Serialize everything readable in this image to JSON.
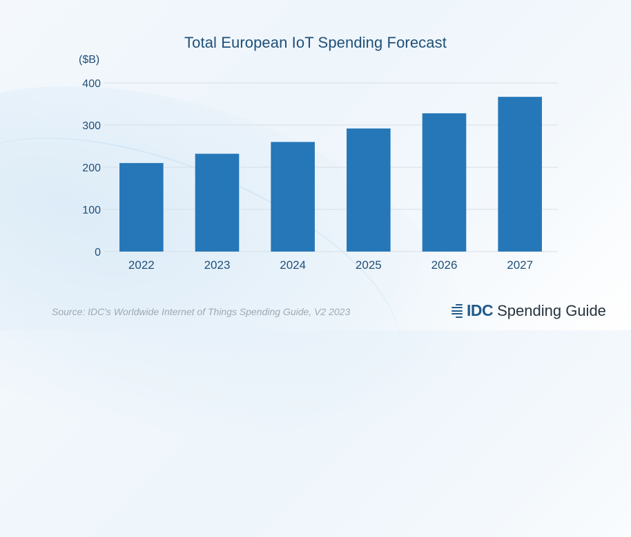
{
  "chart_data": {
    "type": "bar",
    "title": "Total European IoT Spending Forecast",
    "unit_label": "($B)",
    "categories": [
      "2022",
      "2023",
      "2024",
      "2025",
      "2026",
      "2027"
    ],
    "values": [
      210,
      232,
      260,
      292,
      328,
      367
    ],
    "yticks": [
      "0",
      "100",
      "200",
      "300",
      "400"
    ],
    "ylim": [
      0,
      400
    ],
    "grid": true,
    "legend": "none",
    "bar_color": "#2677b8"
  },
  "footer": {
    "source": "Source: IDC's Worldwide Internet of Things Spending Guide, V2 2023",
    "brand_name": "IDC",
    "brand_product": "Spending Guide"
  }
}
